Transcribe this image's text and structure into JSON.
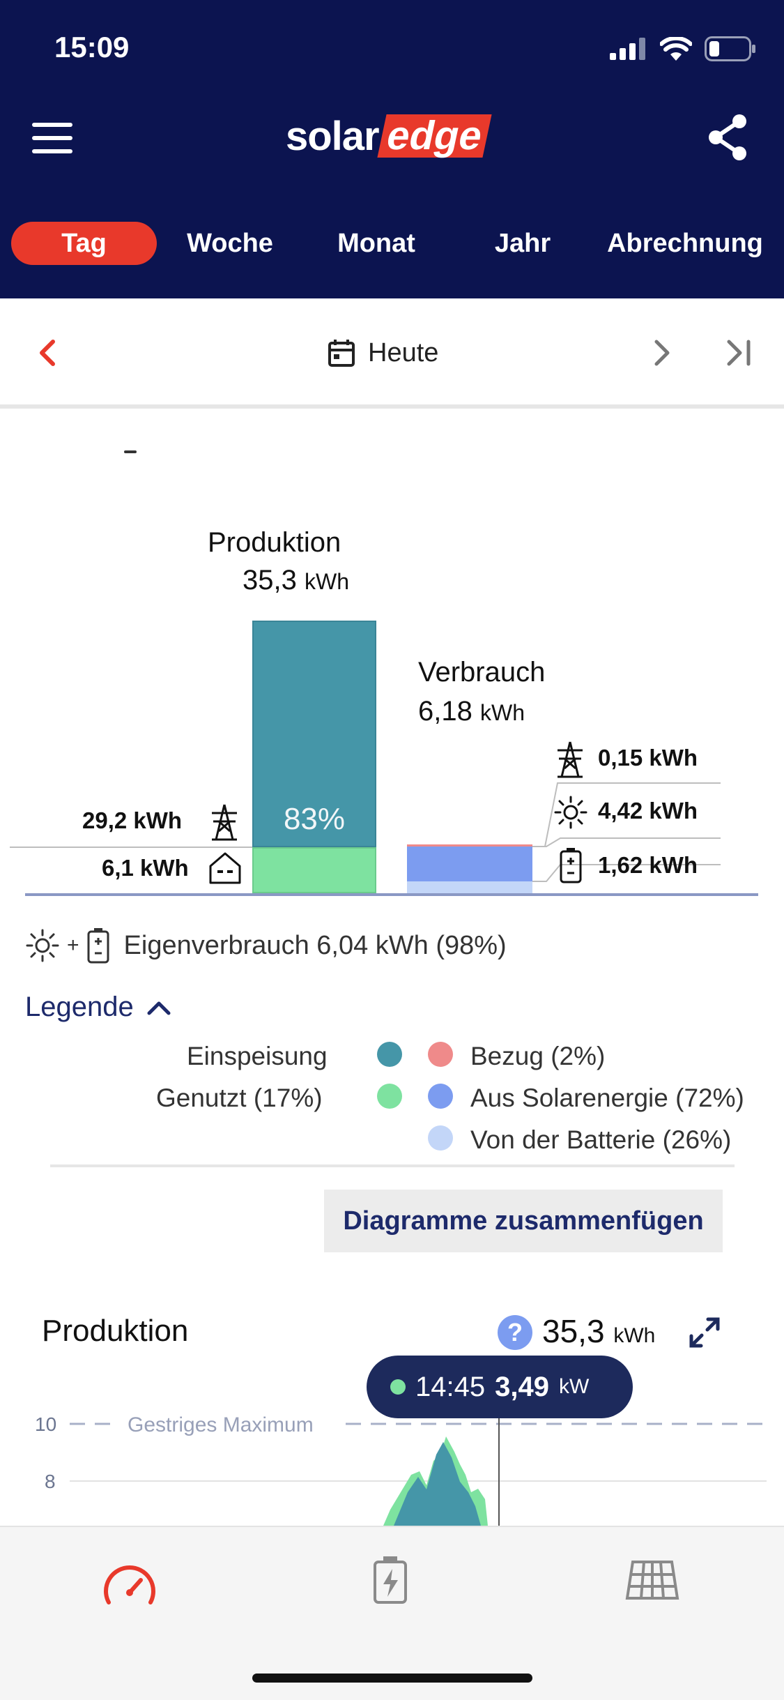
{
  "status_bar": {
    "time": "15:09"
  },
  "header": {
    "logo_solar": "solar",
    "logo_edge": "edge",
    "tabs": [
      {
        "label": "Tag",
        "active": true
      },
      {
        "label": "Woche",
        "active": false
      },
      {
        "label": "Monat",
        "active": false
      },
      {
        "label": "Jahr",
        "active": false
      },
      {
        "label": "Abrechnung",
        "active": false
      }
    ]
  },
  "date_nav": {
    "label": "Heute"
  },
  "energy_balance": {
    "production": {
      "title": "Produktion",
      "value": "35,3",
      "unit": "kWh",
      "percent_label": "83%"
    },
    "consumption": {
      "title": "Verbrauch",
      "value": "6,18",
      "unit": "kWh"
    },
    "left_values": {
      "grid_export": "29,2 kWh",
      "home_used": "6,1 kWh"
    },
    "right_values": {
      "grid_import": "0,15 kWh",
      "from_solar": "4,42 kWh",
      "from_battery": "1,62 kWh"
    },
    "self_consumption": "Eigenverbrauch 6,04 kWh (98%)",
    "self_consumption_plus": "+"
  },
  "legend": {
    "title": "Legende",
    "items": {
      "einspeisung": "Einspeisung",
      "genutzt": "Genutzt (17%)",
      "bezug": "Bezug (2%)",
      "solar": "Aus Solarenergie (72%)",
      "batterie": "Von der Batterie (26%)"
    },
    "colors": {
      "einspeisung": "#4596a8",
      "genutzt": "#7ee2a0",
      "bezug": "#ef8a8a",
      "solar": "#7c9cf0",
      "batterie": "#c3d6f8"
    }
  },
  "merge_button": "Diagramme zusammenfügen",
  "production_chart": {
    "title": "Produktion",
    "help": "?",
    "total_value": "35,3",
    "total_unit": "kWh",
    "tooltip": {
      "time": "14:45",
      "value": "3,49",
      "unit": "kW"
    },
    "reference_label": "Gestriges Maximum"
  },
  "chart_data": {
    "type": "area",
    "title": "Produktion",
    "ylabel": "",
    "y_ticks": [
      8,
      10
    ],
    "reference_line": {
      "label": "Gestriges Maximum",
      "value": 10
    },
    "highlight": {
      "time": "14:45",
      "value": 3.49,
      "unit": "kW"
    },
    "series": [
      {
        "name": "",
        "color": "#7ee2a0"
      },
      {
        "name": "",
        "color": "#4596a8"
      }
    ],
    "grid": true
  }
}
